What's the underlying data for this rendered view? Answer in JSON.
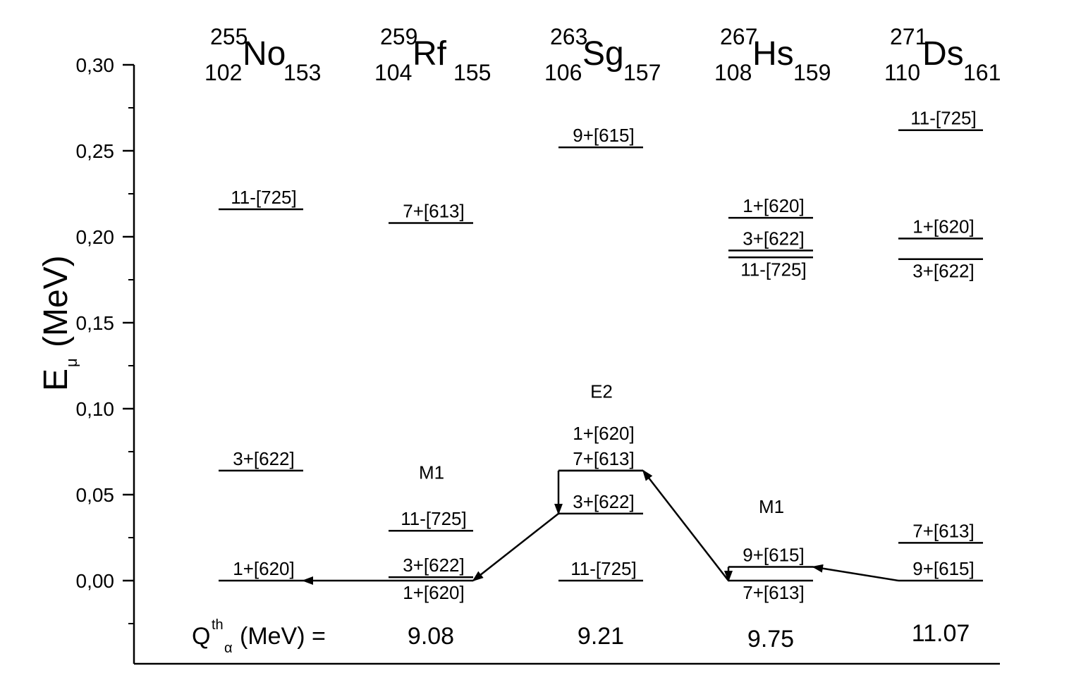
{
  "y_axis": {
    "label_main": "E",
    "label_sub": "μ",
    "label_unit": "(MeV)",
    "ticks": [
      "0,00",
      "0,05",
      "0,10",
      "0,15",
      "0,20",
      "0,25",
      "0,30"
    ],
    "tick_values": [
      0.0,
      0.05,
      0.1,
      0.15,
      0.2,
      0.25,
      0.3
    ],
    "range": [
      -0.05,
      0.3
    ]
  },
  "nuclei": [
    {
      "A": "255",
      "Z": "102",
      "symbol": "No",
      "N": "153"
    },
    {
      "A": "259",
      "Z": "104",
      "symbol": "Rf",
      "N": "155"
    },
    {
      "A": "263",
      "Z": "106",
      "symbol": "Sg",
      "N": "157"
    },
    {
      "A": "267",
      "Z": "108",
      "symbol": "Hs",
      "N": "159"
    },
    {
      "A": "271",
      "Z": "110",
      "symbol": "Ds",
      "N": "161"
    }
  ],
  "levels": [
    {
      "nucleus": 0,
      "label": "1+[620]",
      "energy": 0.0,
      "label_side": "above"
    },
    {
      "nucleus": 0,
      "label": "3+[622]",
      "energy": 0.064,
      "label_side": "above"
    },
    {
      "nucleus": 0,
      "label": "11-[725]",
      "energy": 0.216,
      "label_side": "above"
    },
    {
      "nucleus": 1,
      "label": "1+[620]",
      "energy": 0.0,
      "label_side": "below"
    },
    {
      "nucleus": 1,
      "label": "3+[622]",
      "energy": 0.002,
      "label_side": "above"
    },
    {
      "nucleus": 1,
      "label": "11-[725]",
      "energy": 0.029,
      "label_side": "above"
    },
    {
      "nucleus": 1,
      "label": "7+[613]",
      "energy": 0.208,
      "label_side": "above"
    },
    {
      "nucleus": 2,
      "label": "11-[725]",
      "energy": 0.0,
      "label_side": "above"
    },
    {
      "nucleus": 2,
      "label": "3+[622]",
      "energy": 0.039,
      "label_side": "above"
    },
    {
      "nucleus": 2,
      "label": "7+[613]",
      "energy": 0.064,
      "label_side": "above"
    },
    {
      "nucleus": 2,
      "label": "1+[620]",
      "energy": 0.064,
      "label_side": "above2"
    },
    {
      "nucleus": 2,
      "label": "9+[615]",
      "energy": 0.252,
      "label_side": "above"
    },
    {
      "nucleus": 3,
      "label": "7+[613]",
      "energy": 0.0,
      "label_side": "below"
    },
    {
      "nucleus": 3,
      "label": "9+[615]",
      "energy": 0.008,
      "label_side": "above"
    },
    {
      "nucleus": 3,
      "label": "11-[725]",
      "energy": 0.188,
      "label_side": "below"
    },
    {
      "nucleus": 3,
      "label": "3+[622]",
      "energy": 0.192,
      "label_side": "above"
    },
    {
      "nucleus": 3,
      "label": "1+[620]",
      "energy": 0.211,
      "label_side": "above"
    },
    {
      "nucleus": 4,
      "label": "9+[615]",
      "energy": 0.0,
      "label_side": "above"
    },
    {
      "nucleus": 4,
      "label": "7+[613]",
      "energy": 0.022,
      "label_side": "above"
    },
    {
      "nucleus": 4,
      "label": "3+[622]",
      "energy": 0.187,
      "label_side": "below"
    },
    {
      "nucleus": 4,
      "label": "1+[620]",
      "energy": 0.199,
      "label_side": "above"
    },
    {
      "nucleus": 4,
      "label": "11-[725]",
      "energy": 0.262,
      "label_side": "above"
    }
  ],
  "transitions": [
    {
      "type": "alpha",
      "from": {
        "nucleus": 1,
        "energy": 0.0
      },
      "to": {
        "nucleus": 0,
        "energy": 0.0
      }
    },
    {
      "type": "alpha",
      "from": {
        "nucleus": 2,
        "energy": 0.039
      },
      "to": {
        "nucleus": 1,
        "energy": 0.0
      }
    },
    {
      "type": "gamma",
      "nucleus": 2,
      "from_energy": 0.064,
      "to_energy": 0.039
    },
    {
      "type": "alpha",
      "from": {
        "nucleus": 3,
        "energy": 0.0
      },
      "to": {
        "nucleus": 2,
        "energy": 0.064
      }
    },
    {
      "type": "gamma",
      "nucleus": 3,
      "from_energy": 0.008,
      "to_energy": 0.0
    },
    {
      "type": "alpha",
      "from": {
        "nucleus": 4,
        "energy": 0.0
      },
      "to": {
        "nucleus": 3,
        "energy": 0.008
      }
    }
  ],
  "multipolarities": [
    {
      "nucleus": 1,
      "label": "M1",
      "energy": 0.063
    },
    {
      "nucleus": 2,
      "label": "E2",
      "energy": 0.11
    },
    {
      "nucleus": 3,
      "label": "M1",
      "energy": 0.043
    }
  ],
  "q_alpha": {
    "label_main": "Q",
    "label_sup": "th",
    "label_sub": "α",
    "label_rest": "(MeV) =",
    "values": [
      "9.08",
      "9.21",
      "9.75",
      "11.07"
    ]
  }
}
